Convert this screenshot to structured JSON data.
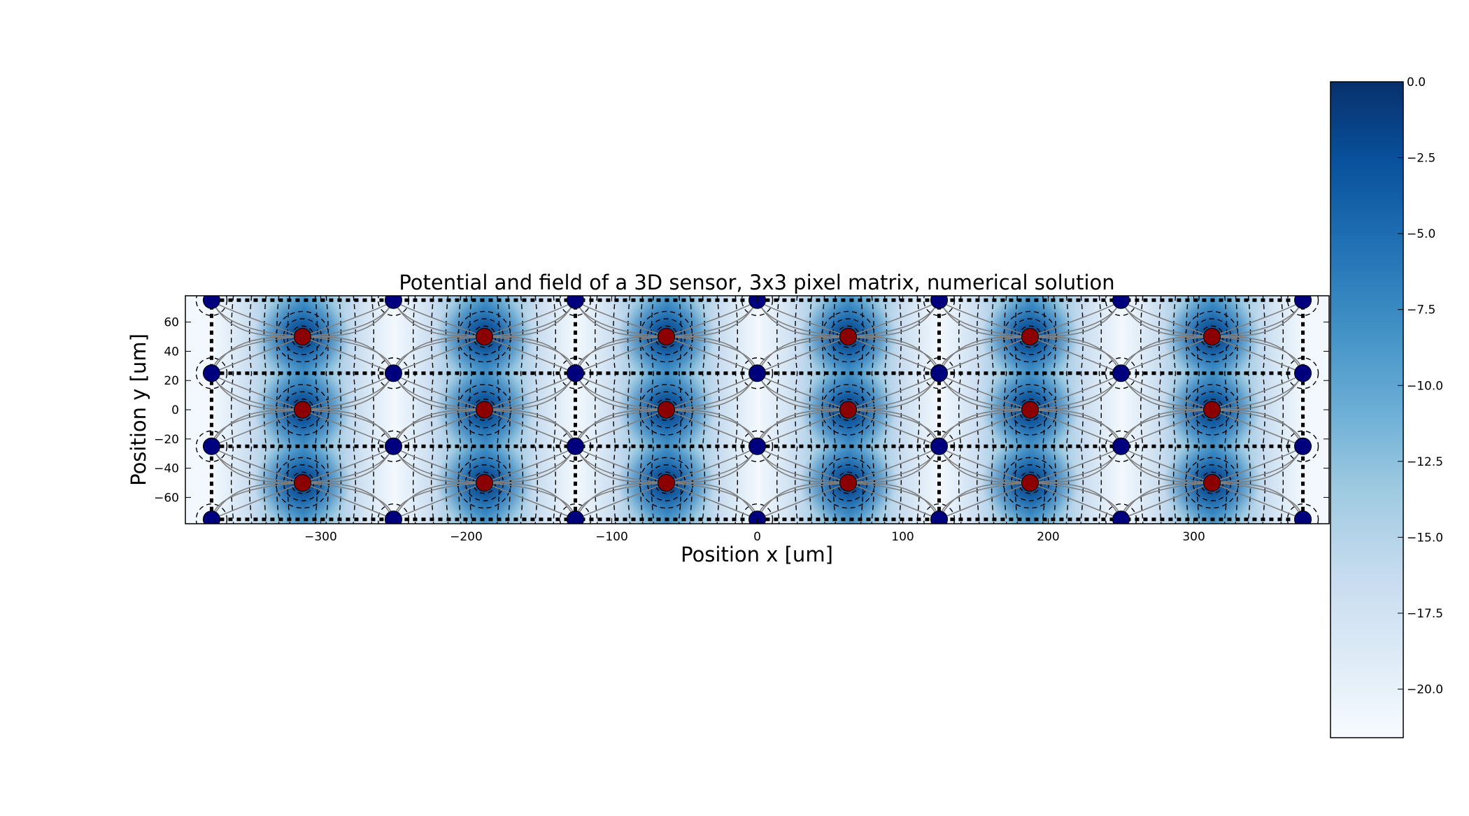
{
  "chart_data": {
    "type": "heatmap",
    "title": "Potential and field of a 3D sensor, 3x3 pixel matrix, numerical solution",
    "xlabel": "Position x [um]",
    "ylabel": "Position y [um]",
    "xlim": [
      -393,
      393
    ],
    "ylim": [
      -78,
      78
    ],
    "xticks": [
      -300,
      -200,
      -100,
      0,
      100,
      200,
      300
    ],
    "xtick_labels": [
      "−300",
      "−200",
      "−100",
      "0",
      "100",
      "200",
      "300"
    ],
    "yticks": [
      -60,
      -40,
      -20,
      0,
      20,
      40,
      60
    ],
    "ytick_labels": [
      "−60",
      "−40",
      "−20",
      "0",
      "20",
      "40",
      "60"
    ],
    "colormap": "Blues_r",
    "colorbar": {
      "vmin": -21.6,
      "vmax": 0,
      "ticks": [
        0,
        -2.5,
        -5,
        -7.5,
        -10,
        -12.5,
        -15,
        -17.5,
        -20
      ],
      "tick_labels": [
        "0.0",
        "−2.5",
        "−5.0",
        "−7.5",
        "−10.0",
        "−12.5",
        "−15.0",
        "−17.5",
        "−20.0"
      ]
    },
    "readout_columns": {
      "x": [
        -312.5,
        -187.5,
        -62.5,
        62.5,
        187.5,
        312.5
      ],
      "y": [
        -50,
        0,
        50
      ],
      "color": "#8b0000"
    },
    "bias_columns": {
      "x": [
        -375,
        -250,
        -125,
        0,
        125,
        250,
        375
      ],
      "y": [
        -75,
        -25,
        25,
        75
      ],
      "color": "#00007f"
    },
    "pixel_boundaries": {
      "x": [
        -375,
        -125,
        125,
        375
      ],
      "y": [
        -75,
        -25,
        25,
        75
      ]
    },
    "potential_contours": "dashed black",
    "field_lines": "solid grey"
  }
}
